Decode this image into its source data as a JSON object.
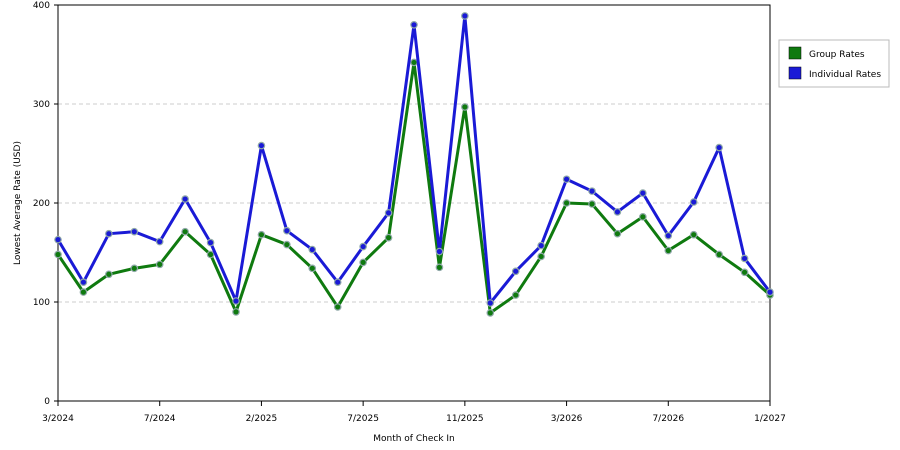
{
  "chart_data": {
    "type": "line",
    "title": "",
    "xlabel": "Month of Check In",
    "ylabel": "Lowest Average Rate (USD)",
    "ylim": [
      0,
      400
    ],
    "yticks": [
      0,
      100,
      200,
      300,
      400
    ],
    "xlim": [
      "3/2024",
      "1/2027"
    ],
    "xticks": [
      "3/2024",
      "7/2024",
      "2/2025",
      "7/2025",
      "11/2025",
      "3/2026",
      "7/2026",
      "1/2027"
    ],
    "x_tick_positions": [
      0,
      4,
      8,
      12,
      16,
      20,
      24,
      28
    ],
    "x_count": 29,
    "grid": "horizontal dashed",
    "legend_position": "top-right",
    "series": [
      {
        "name": "Group Rates",
        "color": "#0f7a0f",
        "values": [
          148,
          110,
          128,
          134,
          138,
          171,
          148,
          90,
          168,
          158,
          134,
          95,
          140,
          165,
          342,
          135,
          297,
          89,
          107,
          146,
          200,
          199,
          169,
          186,
          152,
          168,
          148,
          130,
          107
        ]
      },
      {
        "name": "Individual Rates",
        "color": "#1a1ad6",
        "values": [
          163,
          120,
          169,
          171,
          161,
          204,
          160,
          101,
          258,
          172,
          153,
          120,
          156,
          190,
          380,
          151,
          389,
          99,
          131,
          157,
          224,
          212,
          191,
          210,
          167,
          201,
          256,
          144,
          110
        ]
      }
    ]
  }
}
